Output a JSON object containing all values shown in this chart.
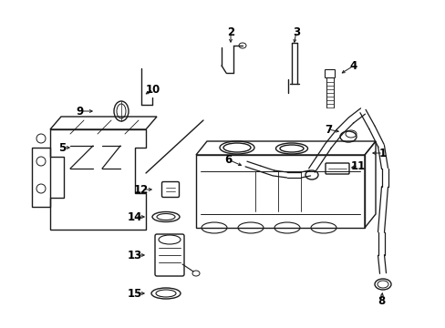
{
  "bg_color": "#ffffff",
  "line_color": "#1a1a1a",
  "figsize": [
    4.89,
    3.6
  ],
  "dpi": 100,
  "arrow_color": "#1a1a1a",
  "font_size": 8.5,
  "lw": 1.0
}
